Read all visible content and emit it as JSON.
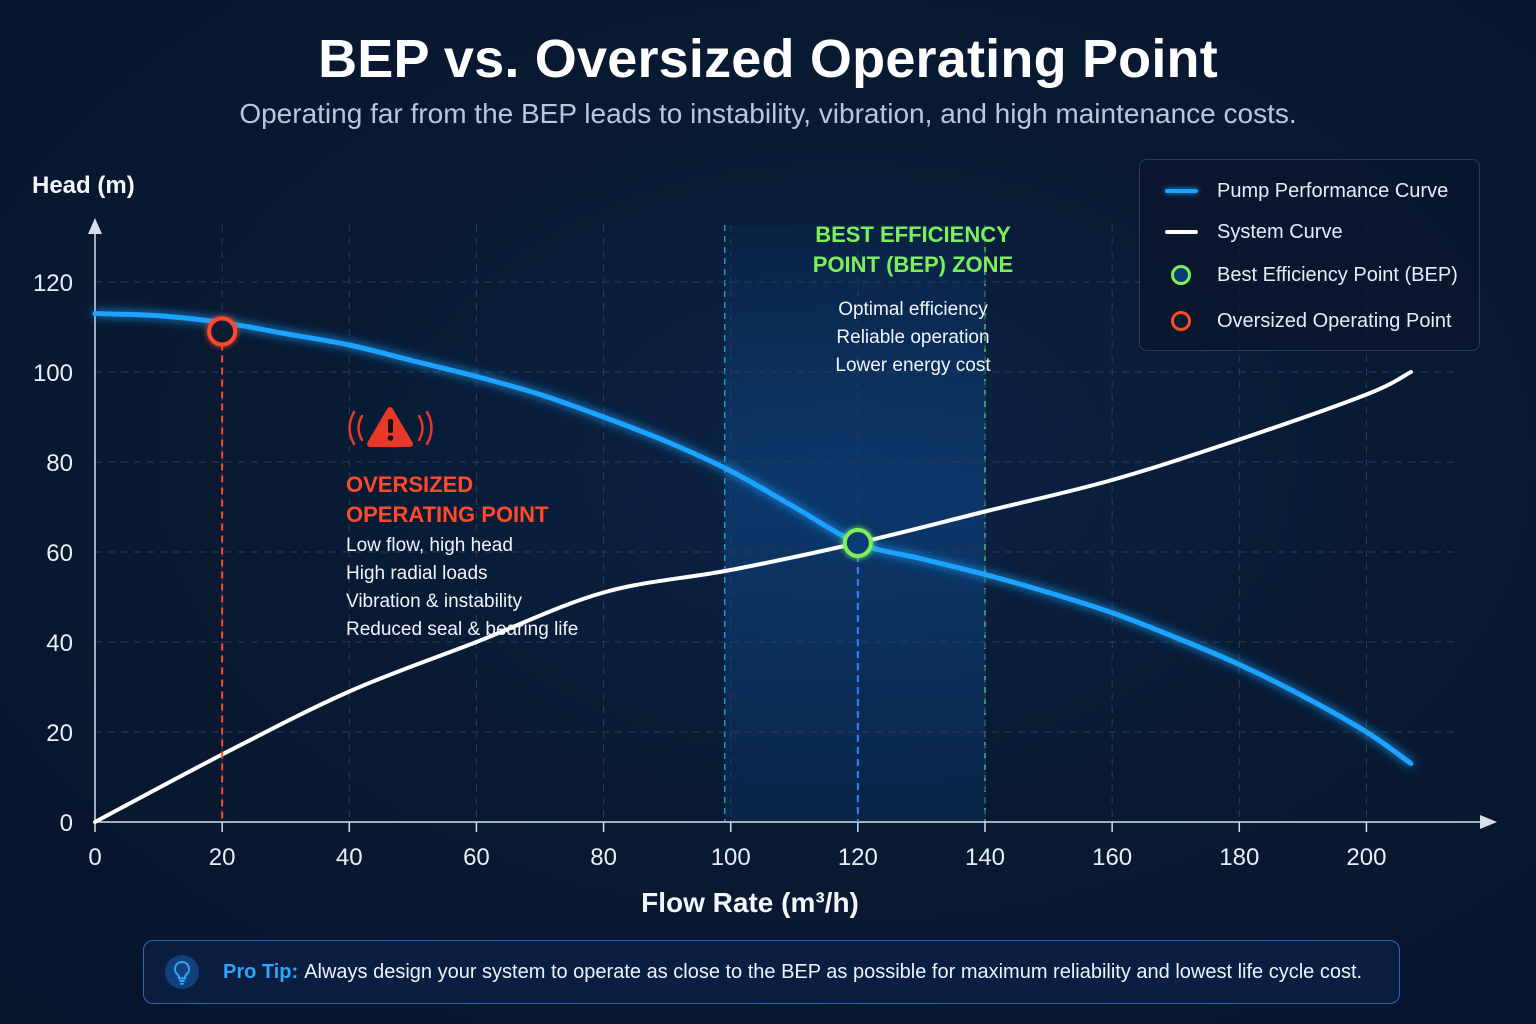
{
  "title": "BEP vs. Oversized Operating Point",
  "subtitle": "Operating far from the BEP leads to instability, vibration, and high maintenance costs.",
  "colors": {
    "pump_curve": "#1aa3ff",
    "system_curve": "#ffffff",
    "bep": "#7cf05a",
    "oversized": "#ff4a2a",
    "zone_text": "#7cf05a",
    "warning": "#ff4a2a",
    "tip_accent": "#2fa6ff"
  },
  "legend": [
    {
      "label": "Pump Performance Curve",
      "icon": "line-swatch",
      "color": "#1aa3ff"
    },
    {
      "label": "System Curve",
      "icon": "line-swatch",
      "color": "#ffffff"
    },
    {
      "label": "Best Efficiency Point (BEP)",
      "icon": "circle-marker",
      "color": "#7cf05a"
    },
    {
      "label": "Oversized Operating Point",
      "icon": "circle-marker",
      "color": "#ff4a2a"
    }
  ],
  "bep_zone": {
    "title_line1": "BEST EFFICIENCY",
    "title_line2": "POINT (BEP) ZONE",
    "items": [
      "Optimal efficiency",
      "Reliable operation",
      "Lower energy cost"
    ]
  },
  "oversized_annotation": {
    "icon": "warning-triangle-icon",
    "title_line1": "OVERSIZED",
    "title_line2": "OPERATING POINT",
    "items": [
      "Low flow, high head",
      "High radial loads",
      "Vibration & instability",
      "Reduced seal & bearing life"
    ]
  },
  "tip": {
    "icon": "lightbulb-icon",
    "label": "Pro Tip:",
    "text": "Always design your system to operate as close to the BEP as possible for maximum reliability and lowest life cycle cost."
  },
  "chart_data": {
    "type": "line",
    "xlabel": "Flow Rate (m³/h)",
    "ylabel": "Head (m)",
    "x_ticks": [
      0,
      20,
      40,
      60,
      80,
      100,
      120,
      140,
      160,
      180,
      200
    ],
    "y_ticks": [
      0,
      20,
      40,
      60,
      80,
      100,
      120
    ],
    "xlim": [
      0,
      210
    ],
    "ylim": [
      0,
      130
    ],
    "grid": true,
    "legend_position": "top-right",
    "series": [
      {
        "name": "Pump Performance Curve",
        "x": [
          0,
          10,
          20,
          30,
          40,
          50,
          60,
          70,
          80,
          90,
          100,
          110,
          120,
          130,
          140,
          150,
          160,
          170,
          180,
          190,
          200,
          207
        ],
        "y": [
          113,
          112.5,
          111,
          108.5,
          106,
          102.5,
          99,
          95,
          90,
          84.5,
          78,
          70,
          62,
          58.5,
          55,
          51,
          46.5,
          41,
          35,
          28,
          20,
          13
        ]
      },
      {
        "name": "System Curve",
        "x": [
          0,
          20,
          40,
          60,
          80,
          100,
          120,
          140,
          160,
          180,
          200,
          207
        ],
        "y": [
          0,
          15,
          29,
          40,
          51,
          56,
          62,
          69,
          76,
          85,
          95,
          100
        ]
      }
    ],
    "points": [
      {
        "name": "Best Efficiency Point (BEP)",
        "x": 120,
        "y": 62
      },
      {
        "name": "Oversized Operating Point",
        "x": 20,
        "y": 109
      }
    ],
    "bep_zone_range": [
      100,
      140
    ]
  }
}
